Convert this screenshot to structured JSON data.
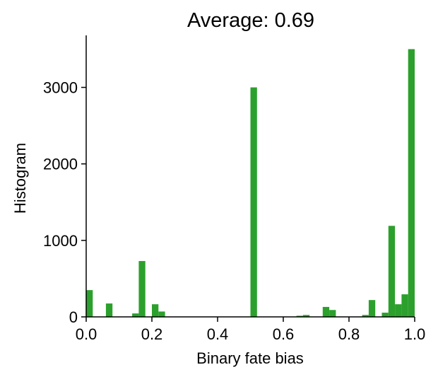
{
  "chart_data": {
    "type": "bar",
    "title": "Average: 0.69",
    "xlabel": "Binary fate bias",
    "ylabel": "Histogram",
    "xlim": [
      0.0,
      1.0
    ],
    "ylim": [
      0,
      3680
    ],
    "x_ticks": [
      "0.0",
      "0.2",
      "0.4",
      "0.6",
      "0.8",
      "1.0"
    ],
    "y_ticks": [
      "0",
      "1000",
      "2000",
      "3000"
    ],
    "bar_color": "#2ca02c",
    "bins": [
      {
        "x0": 0.0,
        "x1": 0.02,
        "value": 350
      },
      {
        "x0": 0.06,
        "x1": 0.08,
        "value": 175
      },
      {
        "x0": 0.14,
        "x1": 0.16,
        "value": 45
      },
      {
        "x0": 0.16,
        "x1": 0.18,
        "value": 730
      },
      {
        "x0": 0.2,
        "x1": 0.22,
        "value": 165
      },
      {
        "x0": 0.22,
        "x1": 0.24,
        "value": 70
      },
      {
        "x0": 0.5,
        "x1": 0.52,
        "value": 3000
      },
      {
        "x0": 0.64,
        "x1": 0.66,
        "value": 15
      },
      {
        "x0": 0.66,
        "x1": 0.68,
        "value": 25
      },
      {
        "x0": 0.72,
        "x1": 0.74,
        "value": 130
      },
      {
        "x0": 0.74,
        "x1": 0.76,
        "value": 90
      },
      {
        "x0": 0.84,
        "x1": 0.86,
        "value": 25
      },
      {
        "x0": 0.86,
        "x1": 0.88,
        "value": 220
      },
      {
        "x0": 0.9,
        "x1": 0.92,
        "value": 55
      },
      {
        "x0": 0.92,
        "x1": 0.94,
        "value": 1190
      },
      {
        "x0": 0.94,
        "x1": 0.96,
        "value": 165
      },
      {
        "x0": 0.96,
        "x1": 0.98,
        "value": 295
      },
      {
        "x0": 0.98,
        "x1": 1.0,
        "value": 3500
      }
    ]
  }
}
